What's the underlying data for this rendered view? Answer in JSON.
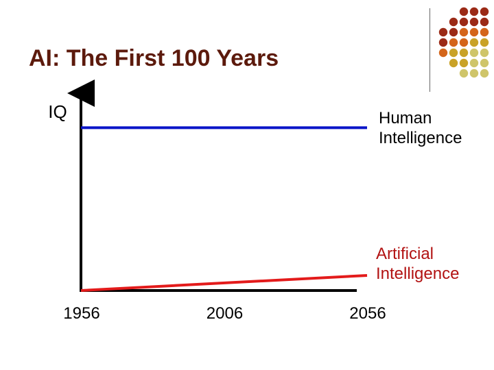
{
  "slide": {
    "title": "AI: The First 100 Years"
  },
  "decoration": {
    "dot_colors": {
      "dark_red": "#9b2a16",
      "orange": "#d4651a",
      "gold": "#c9a227",
      "khaki": "#cfc56a"
    },
    "dot_pattern": [
      [
        "dark_red",
        "dark_red",
        "dark_red"
      ],
      [
        "dark_red",
        "dark_red",
        "dark_red",
        "dark_red"
      ],
      [
        "dark_red",
        "dark_red",
        "orange",
        "orange",
        "orange"
      ],
      [
        "dark_red",
        "orange",
        "orange",
        "gold",
        "gold"
      ],
      [
        "orange",
        "gold",
        "gold",
        "khaki",
        "khaki"
      ],
      [
        "gold",
        "gold",
        "khaki",
        "khaki"
      ],
      [
        "khaki",
        "khaki",
        "khaki"
      ]
    ]
  },
  "chart_data": {
    "type": "line",
    "ylabel": "IQ",
    "xlabel": "",
    "x_ticks": [
      "1956",
      "2006",
      "2056"
    ],
    "xlim": [
      1956,
      2056
    ],
    "ylim": [
      0,
      100
    ],
    "grid": false,
    "series": [
      {
        "name": "Human\nIntelligence",
        "color": "#0a14c8",
        "x": [
          1956,
          2056
        ],
        "y": [
          97,
          97
        ]
      },
      {
        "name": "Artificial\nIntelligence",
        "color": "#e31b1b",
        "x": [
          1956,
          2056
        ],
        "y": [
          0,
          9
        ]
      }
    ]
  }
}
